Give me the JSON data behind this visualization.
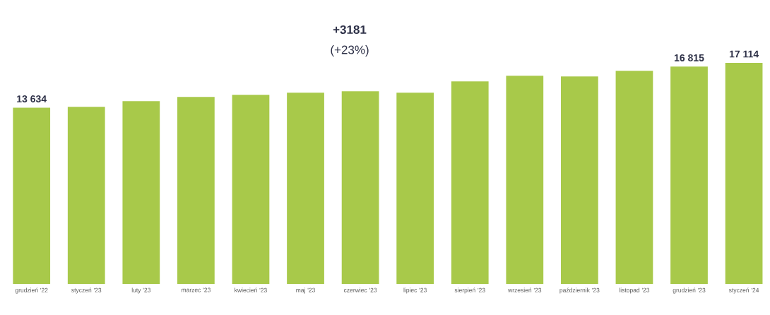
{
  "chart_data": {
    "type": "bar",
    "categories": [
      "grudzień '22",
      "styczeń '23",
      "luty '23",
      "marzec '23",
      "kwiecień '23",
      "maj '23",
      "czerwiec '23",
      "lipiec '23",
      "sierpień '23",
      "wrzesień '23",
      "październik '23",
      "listopad '23",
      "grudzień '23",
      "styczeń '24"
    ],
    "values": [
      13634,
      13700,
      14140,
      14470,
      14630,
      14800,
      14910,
      14800,
      15670,
      16110,
      16050,
      16490,
      16815,
      17114
    ],
    "value_labels": [
      "13 634",
      null,
      null,
      null,
      null,
      null,
      null,
      null,
      null,
      null,
      null,
      null,
      "16 815",
      "17 114"
    ],
    "color": "#a8c94a",
    "annotations": [
      "+3181",
      "(+23%)"
    ]
  }
}
